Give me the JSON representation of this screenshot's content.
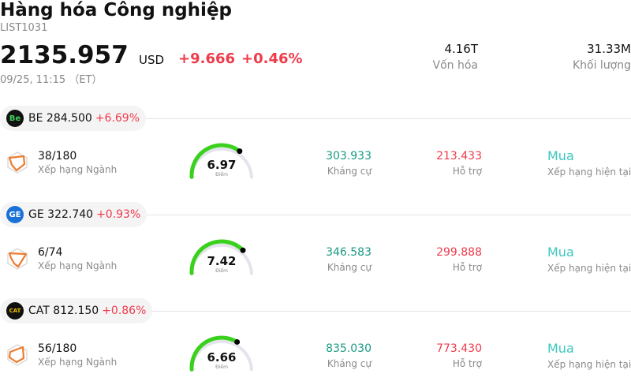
{
  "header": {
    "title": "Hàng hóa Công nghiệp",
    "code": "LIST1031",
    "price": "2135.957",
    "currency": "USD",
    "change_abs": "+9.666",
    "change_pct": "+0.46%",
    "time": "09/25, 11:15 （ET）",
    "market_cap_value": "4.16T",
    "market_cap_label": "Vốn hóa",
    "volume_value": "31.33M",
    "volume_label": "Khối lượng"
  },
  "colors": {
    "up": "#ee3b4b",
    "resistance": "#199a83",
    "recommendation": "#3ac6c0",
    "gauge": "#3ad11d"
  },
  "items": [
    {
      "logo_text": "Be",
      "ticker": "BE",
      "price": "284.500",
      "pct": "+6.69%",
      "rank": "38/180",
      "rank_label": "Xếp hạng Ngành",
      "score": "6.97",
      "score_value": 6.97,
      "score_label": "Điểm",
      "resistance": "303.933",
      "resistance_label": "Kháng cự",
      "support": "213.433",
      "support_label": "Hỗ trợ",
      "recommendation": "Mua",
      "recommendation_label": "Xếp hạng hiện tại"
    },
    {
      "logo_text": "GE",
      "ticker": "GE",
      "price": "322.740",
      "pct": "+0.93%",
      "rank": "6/74",
      "rank_label": "Xếp hạng Ngành",
      "score": "7.42",
      "score_value": 7.42,
      "score_label": "Điểm",
      "resistance": "346.583",
      "resistance_label": "Kháng cự",
      "support": "299.888",
      "support_label": "Hỗ trợ",
      "recommendation": "Mua",
      "recommendation_label": "Xếp hạng hiện tại"
    },
    {
      "logo_text": "CAT",
      "ticker": "CAT",
      "price": "812.150",
      "pct": "+0.86%",
      "rank": "56/180",
      "rank_label": "Xếp hạng Ngành",
      "score": "6.66",
      "score_value": 6.66,
      "score_label": "Điểm",
      "resistance": "835.030",
      "resistance_label": "Kháng cự",
      "support": "773.430",
      "support_label": "Hỗ trợ",
      "recommendation": "Mua",
      "recommendation_label": "Xếp hạng hiện tại"
    }
  ]
}
